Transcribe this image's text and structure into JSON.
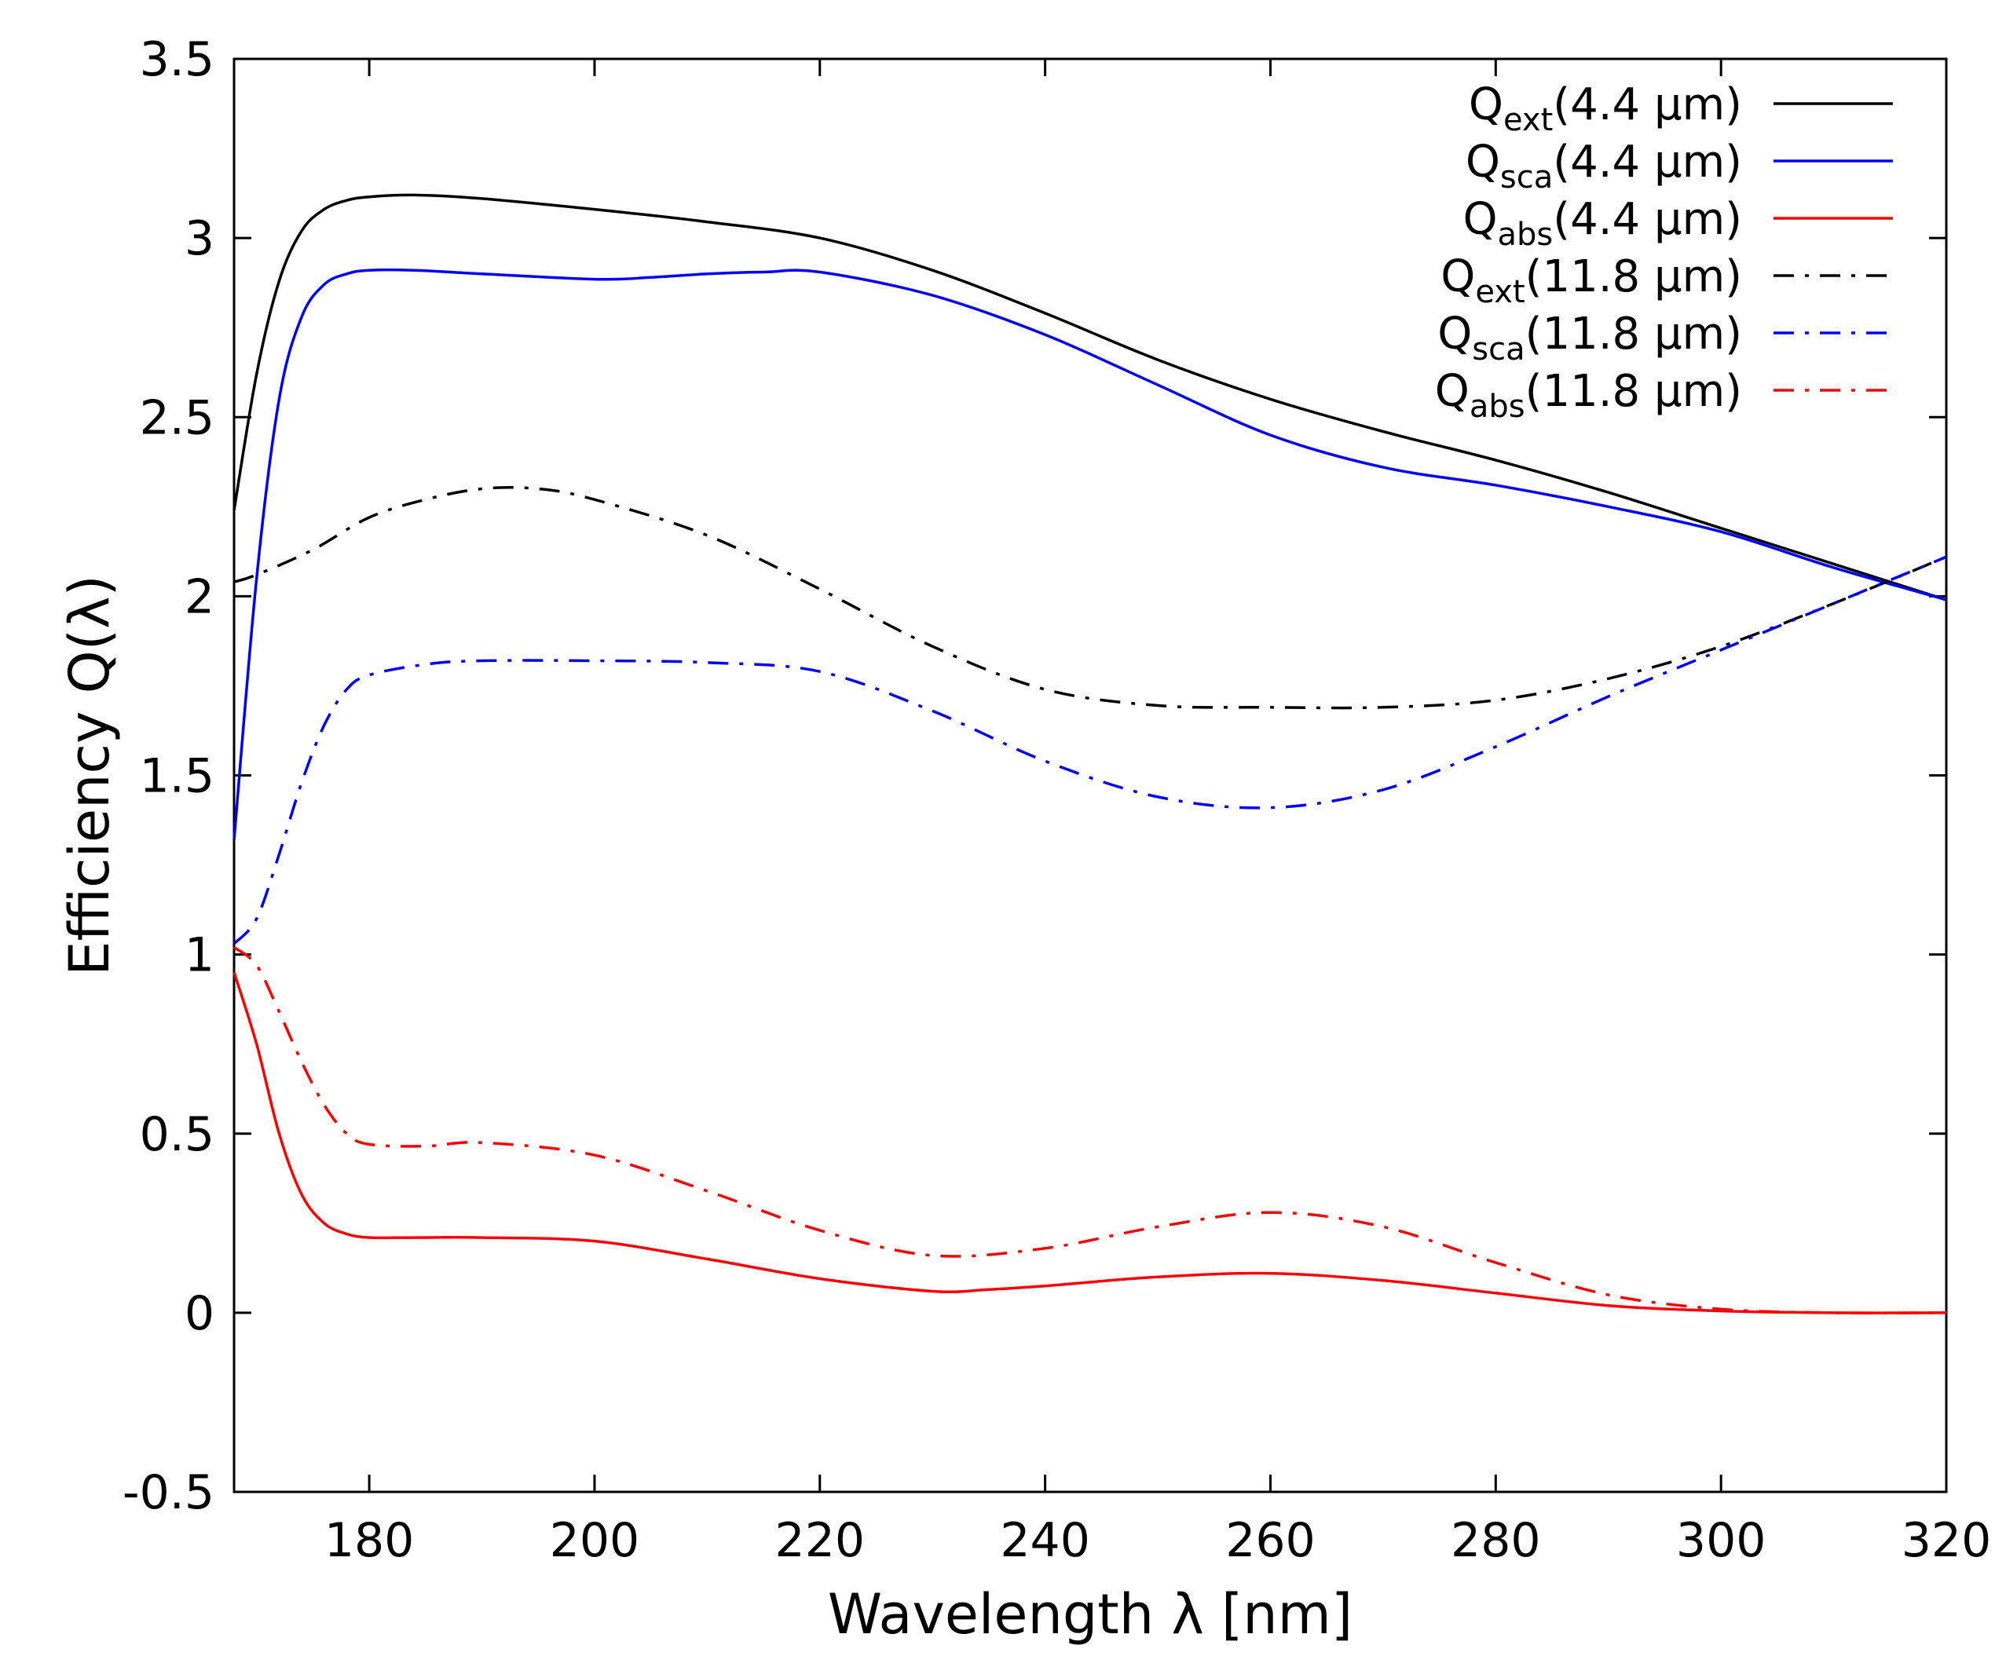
{
  "chart_data": {
    "type": "line",
    "title": "",
    "xlabel": "Wavelength λ [nm]",
    "ylabel": "Efficiency Q(λ)",
    "xlim": [
      168,
      320
    ],
    "ylim": [
      -0.5,
      3.5
    ],
    "grid": false,
    "legend_position": "top-right",
    "xticks": [
      180,
      200,
      220,
      240,
      260,
      280,
      300,
      320
    ],
    "xtick_labels": [
      "180",
      "200",
      "220",
      "240",
      "260",
      "280",
      "300",
      "320"
    ],
    "yticks": [
      -0.5,
      0,
      0.5,
      1,
      1.5,
      2,
      2.5,
      3,
      3.5
    ],
    "ytick_labels": [
      "-0.5",
      "0",
      "0.5",
      "1",
      "1.5",
      "2",
      "2.5",
      "3",
      "3.5"
    ],
    "series": [
      {
        "name": "Qext(4.4 μm)",
        "legend_main": "Q",
        "legend_sub": "ext",
        "legend_rest": "(4.4 μm)",
        "color": "#000000",
        "dash": "solid",
        "x": [
          168,
          170,
          172,
          174,
          176,
          178,
          180,
          184,
          190,
          200,
          210,
          220,
          230,
          240,
          250,
          260,
          270,
          280,
          290,
          300,
          310,
          320
        ],
        "values": [
          2.24,
          2.62,
          2.88,
          3.02,
          3.08,
          3.105,
          3.115,
          3.12,
          3.11,
          3.08,
          3.045,
          3.0,
          2.91,
          2.79,
          2.66,
          2.55,
          2.46,
          2.38,
          2.29,
          2.19,
          2.09,
          1.99
        ]
      },
      {
        "name": "Qsca(4.4 μm)",
        "legend_main": "Q",
        "legend_sub": "sca",
        "legend_rest": "(4.4 μm)",
        "color": "#0000ff",
        "dash": "solid",
        "x": [
          168,
          170,
          172,
          174,
          176,
          178,
          180,
          184,
          190,
          200,
          205,
          210,
          215,
          220,
          230,
          240,
          250,
          260,
          270,
          280,
          290,
          300,
          310,
          320
        ],
        "values": [
          1.32,
          2.05,
          2.55,
          2.78,
          2.87,
          2.9,
          2.91,
          2.91,
          2.9,
          2.885,
          2.89,
          2.9,
          2.905,
          2.905,
          2.84,
          2.73,
          2.59,
          2.45,
          2.36,
          2.31,
          2.25,
          2.18,
          2.08,
          1.99
        ]
      },
      {
        "name": "Qabs(4.4 μm)",
        "legend_main": "Q",
        "legend_sub": "abs",
        "legend_rest": "(4.4 μm)",
        "color": "#ff0000",
        "dash": "solid",
        "x": [
          168,
          170,
          172,
          174,
          176,
          178,
          180,
          184,
          190,
          200,
          210,
          220,
          230,
          235,
          240,
          250,
          260,
          270,
          280,
          290,
          300,
          310,
          320
        ],
        "values": [
          0.95,
          0.75,
          0.5,
          0.33,
          0.25,
          0.22,
          0.21,
          0.21,
          0.21,
          0.2,
          0.15,
          0.095,
          0.06,
          0.065,
          0.075,
          0.1,
          0.11,
          0.09,
          0.055,
          0.02,
          0.005,
          0.0,
          0.0
        ]
      },
      {
        "name": "Qext(11.8 μm)",
        "legend_main": "Q",
        "legend_sub": "ext",
        "legend_rest": "(11.8 μm)",
        "color": "#000000",
        "dash": "dashdot",
        "x": [
          168,
          170,
          175,
          180,
          185,
          190,
          195,
          200,
          210,
          220,
          230,
          240,
          250,
          260,
          270,
          280,
          290,
          300,
          310,
          320
        ],
        "values": [
          2.04,
          2.06,
          2.13,
          2.22,
          2.27,
          2.3,
          2.3,
          2.27,
          2.17,
          2.02,
          1.86,
          1.74,
          1.695,
          1.69,
          1.69,
          1.71,
          1.77,
          1.86,
          1.98,
          2.11
        ]
      },
      {
        "name": "Qsca(11.8 μm)",
        "legend_main": "Q",
        "legend_sub": "sca",
        "legend_rest": "(11.8 μm)",
        "color": "#0000ff",
        "dash": "dashdot",
        "x": [
          168,
          170,
          172,
          174,
          176,
          178,
          180,
          185,
          190,
          200,
          210,
          220,
          230,
          240,
          250,
          260,
          270,
          280,
          290,
          300,
          310,
          320
        ],
        "values": [
          1.03,
          1.1,
          1.28,
          1.48,
          1.64,
          1.74,
          1.78,
          1.81,
          1.82,
          1.82,
          1.815,
          1.79,
          1.68,
          1.54,
          1.44,
          1.41,
          1.46,
          1.58,
          1.72,
          1.85,
          1.98,
          2.11
        ]
      },
      {
        "name": "Qabs(11.8 μm)",
        "legend_main": "Q",
        "legend_sub": "abs",
        "legend_rest": "(11.8 μm)",
        "color": "#ff0000",
        "dash": "dashdot",
        "x": [
          168,
          170,
          172,
          174,
          176,
          178,
          180,
          185,
          190,
          200,
          210,
          220,
          230,
          240,
          250,
          260,
          270,
          280,
          290,
          300,
          310,
          320
        ],
        "values": [
          1.02,
          0.97,
          0.84,
          0.7,
          0.58,
          0.5,
          0.47,
          0.465,
          0.475,
          0.44,
          0.34,
          0.23,
          0.16,
          0.18,
          0.24,
          0.28,
          0.24,
          0.14,
          0.05,
          0.01,
          0.0,
          0.0
        ]
      }
    ]
  }
}
